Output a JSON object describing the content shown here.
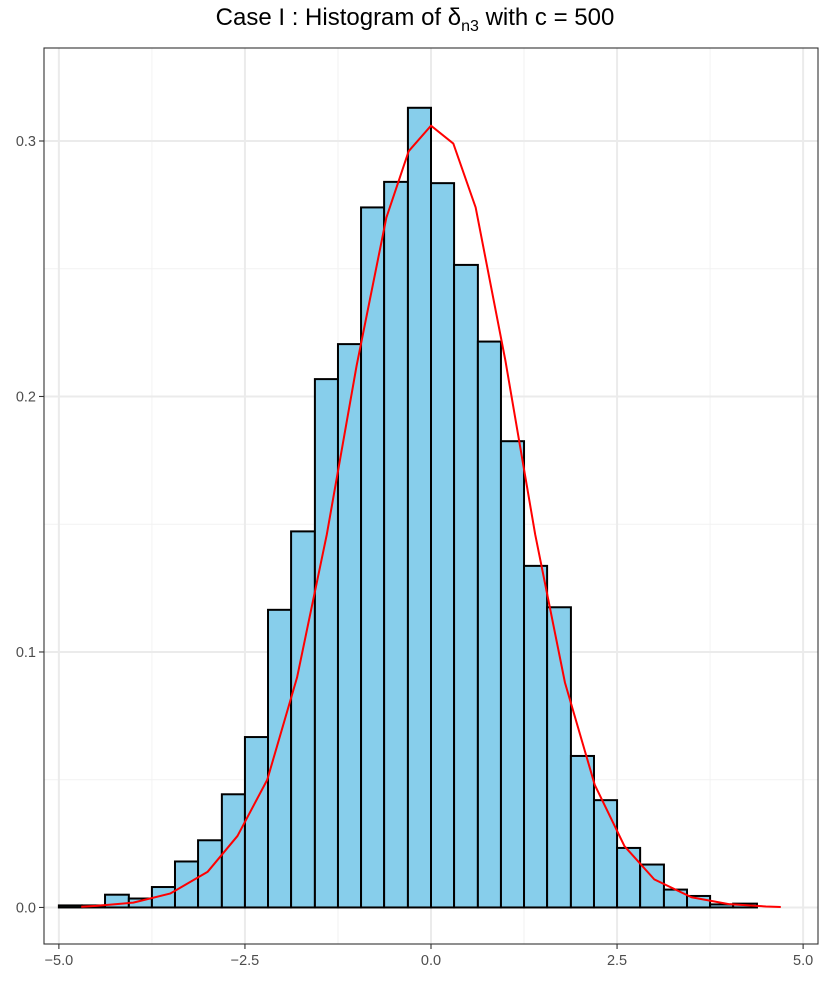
{
  "chart_data": {
    "type": "bar",
    "title_parts": {
      "prefix": "Case I :  Histogram of ",
      "symbol": "δ",
      "subscript": "n3",
      "suffix": " with c = 500"
    },
    "xlabel": "",
    "ylabel": "",
    "xlim": [
      -5.2,
      5.2
    ],
    "ylim": [
      -0.0143,
      0.3364
    ],
    "x_ticks": [
      {
        "value": -5.0,
        "label": "−5.0"
      },
      {
        "value": -2.5,
        "label": "−2.5"
      },
      {
        "value": 0.0,
        "label": "0.0"
      },
      {
        "value": 2.5,
        "label": "2.5"
      },
      {
        "value": 5.0,
        "label": "5.0"
      }
    ],
    "y_ticks": [
      {
        "value": 0.0,
        "label": "0.0"
      },
      {
        "value": 0.1,
        "label": "0.1"
      },
      {
        "value": 0.2,
        "label": "0.2"
      },
      {
        "value": 0.3,
        "label": "0.3"
      }
    ],
    "grid": true,
    "bar_fill": "#87ceeb",
    "bar_outline": "#000000",
    "curve_color": "#ff0000",
    "bins": [
      {
        "left": -5.0,
        "right": -4.69,
        "value": 0.0008
      },
      {
        "left": -4.69,
        "right": -4.38,
        "value": 0.0008
      },
      {
        "left": -4.38,
        "right": -4.06,
        "value": 0.005
      },
      {
        "left": -4.06,
        "right": -3.75,
        "value": 0.0035
      },
      {
        "left": -3.75,
        "right": -3.44,
        "value": 0.008
      },
      {
        "left": -3.44,
        "right": -3.13,
        "value": 0.018
      },
      {
        "left": -3.13,
        "right": -2.81,
        "value": 0.0263
      },
      {
        "left": -2.81,
        "right": -2.5,
        "value": 0.0443
      },
      {
        "left": -2.5,
        "right": -2.19,
        "value": 0.0667
      },
      {
        "left": -2.19,
        "right": -1.88,
        "value": 0.1165
      },
      {
        "left": -1.88,
        "right": -1.56,
        "value": 0.1472
      },
      {
        "left": -1.56,
        "right": -1.25,
        "value": 0.2068
      },
      {
        "left": -1.25,
        "right": -0.94,
        "value": 0.2205
      },
      {
        "left": -0.94,
        "right": -0.63,
        "value": 0.274
      },
      {
        "left": -0.63,
        "right": -0.31,
        "value": 0.284
      },
      {
        "left": -0.31,
        "right": 0.0,
        "value": 0.313
      },
      {
        "left": 0.0,
        "right": 0.31,
        "value": 0.2835
      },
      {
        "left": 0.31,
        "right": 0.63,
        "value": 0.2515
      },
      {
        "left": 0.63,
        "right": 0.94,
        "value": 0.2215
      },
      {
        "left": 0.94,
        "right": 1.25,
        "value": 0.1825
      },
      {
        "left": 1.25,
        "right": 1.56,
        "value": 0.1337
      },
      {
        "left": 1.56,
        "right": 1.88,
        "value": 0.1175
      },
      {
        "left": 1.88,
        "right": 2.19,
        "value": 0.0593
      },
      {
        "left": 2.19,
        "right": 2.5,
        "value": 0.042
      },
      {
        "left": 2.5,
        "right": 2.81,
        "value": 0.0233
      },
      {
        "left": 2.81,
        "right": 3.13,
        "value": 0.0168
      },
      {
        "left": 3.13,
        "right": 3.44,
        "value": 0.007
      },
      {
        "left": 3.44,
        "right": 3.75,
        "value": 0.0045
      },
      {
        "left": 3.75,
        "right": 4.06,
        "value": 0.0012
      },
      {
        "left": 4.06,
        "right": 4.38,
        "value": 0.0015
      }
    ],
    "curve": {
      "type": "line",
      "x": [
        -4.7,
        -4.5,
        -4.0,
        -3.5,
        -3.0,
        -2.6,
        -2.2,
        -1.8,
        -1.4,
        -1.0,
        -0.6,
        -0.3,
        0.0,
        0.3,
        0.6,
        1.0,
        1.4,
        1.8,
        2.2,
        2.6,
        3.0,
        3.5,
        4.0,
        4.5,
        4.7
      ],
      "y": [
        0.0003,
        0.0006,
        0.0019,
        0.0055,
        0.014,
        0.028,
        0.05,
        0.09,
        0.146,
        0.212,
        0.27,
        0.296,
        0.306,
        0.299,
        0.274,
        0.214,
        0.146,
        0.088,
        0.048,
        0.024,
        0.011,
        0.004,
        0.0013,
        0.0004,
        0.0002
      ]
    }
  }
}
